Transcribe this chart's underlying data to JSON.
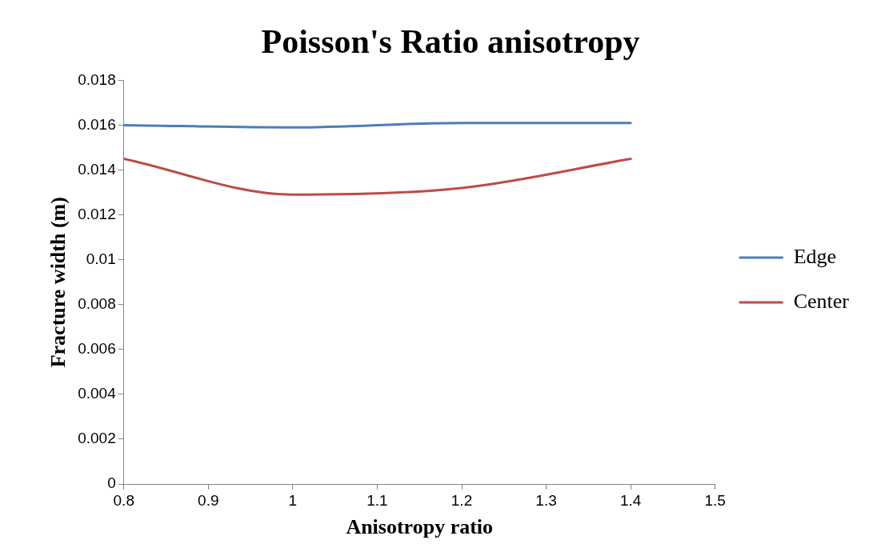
{
  "chart_data": {
    "type": "line",
    "title": "Poisson's Ratio anisotropy",
    "xlabel": "Anisotropy ratio",
    "ylabel": "Fracture width (m)",
    "x": [
      0.8,
      1.0,
      1.2,
      1.4
    ],
    "series": [
      {
        "name": "Edge",
        "color": "#4a7ebb",
        "values": [
          0.016,
          0.0159,
          0.0161,
          0.0161
        ]
      },
      {
        "name": "Center",
        "color": "#be4b48",
        "values": [
          0.0145,
          0.0129,
          0.0132,
          0.0145
        ]
      }
    ],
    "xlim": [
      0.8,
      1.5
    ],
    "xticks": [
      0.8,
      0.9,
      1,
      1.1,
      1.2,
      1.3,
      1.4,
      1.5
    ],
    "ylim": [
      0,
      0.018
    ],
    "yticks": [
      0,
      0.002,
      0.004,
      0.006,
      0.008,
      0.01,
      0.012,
      0.014,
      0.016,
      0.018
    ],
    "grid": false,
    "legend": "right",
    "marker": "none",
    "line_style": "solid"
  }
}
